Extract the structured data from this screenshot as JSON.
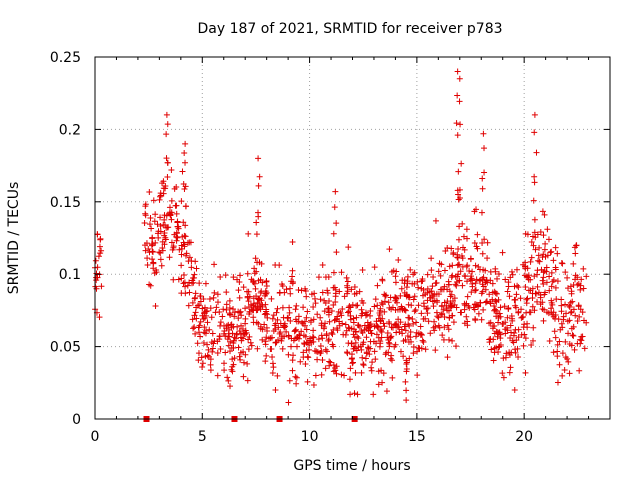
{
  "chart_data": {
    "type": "scatter",
    "title": "Day 187 of 2021, SRMTID for receiver p783",
    "xlabel": "GPS time / hours",
    "ylabel": "SRMTID / TECUs",
    "xlim": [
      0,
      24
    ],
    "ylim": [
      0,
      0.25
    ],
    "x_ticks": [
      0,
      5,
      10,
      15,
      20
    ],
    "x_tick_labels": [
      "0",
      "5",
      "10",
      "15",
      "20"
    ],
    "y_ticks": [
      0,
      0.05,
      0.1,
      0.15,
      0.2,
      0.25
    ],
    "y_tick_labels": [
      "0",
      "0.05",
      "0.1",
      "0.15",
      "0.2",
      "0.25"
    ],
    "grid": true,
    "marker": "+",
    "color": "#e00000",
    "gap_markers_x": [
      2.4,
      6.5,
      8.6,
      12.1
    ],
    "series": [
      {
        "name": "SRMTID",
        "trend": [
          {
            "x": 0.0,
            "y": 0.095
          },
          {
            "x": 0.3,
            "y": 0.1
          },
          {
            "x": 2.3,
            "y": 0.13
          },
          {
            "x": 2.8,
            "y": 0.12
          },
          {
            "x": 3.2,
            "y": 0.14
          },
          {
            "x": 3.6,
            "y": 0.13
          },
          {
            "x": 4.2,
            "y": 0.12
          },
          {
            "x": 4.6,
            "y": 0.08
          },
          {
            "x": 5.0,
            "y": 0.065
          },
          {
            "x": 6.0,
            "y": 0.055
          },
          {
            "x": 7.0,
            "y": 0.065
          },
          {
            "x": 7.5,
            "y": 0.09
          },
          {
            "x": 8.0,
            "y": 0.065
          },
          {
            "x": 9.0,
            "y": 0.06
          },
          {
            "x": 10.0,
            "y": 0.06
          },
          {
            "x": 11.0,
            "y": 0.065
          },
          {
            "x": 12.0,
            "y": 0.06
          },
          {
            "x": 13.0,
            "y": 0.055
          },
          {
            "x": 14.0,
            "y": 0.07
          },
          {
            "x": 15.0,
            "y": 0.075
          },
          {
            "x": 16.0,
            "y": 0.085
          },
          {
            "x": 16.8,
            "y": 0.095
          },
          {
            "x": 17.5,
            "y": 0.1
          },
          {
            "x": 18.0,
            "y": 0.09
          },
          {
            "x": 19.0,
            "y": 0.065
          },
          {
            "x": 19.7,
            "y": 0.065
          },
          {
            "x": 20.5,
            "y": 0.1
          },
          {
            "x": 21.0,
            "y": 0.1
          },
          {
            "x": 21.5,
            "y": 0.07
          },
          {
            "x": 22.0,
            "y": 0.07
          },
          {
            "x": 22.9,
            "y": 0.08
          }
        ],
        "spread": 0.025,
        "coverage": [
          [
            0.0,
            0.3
          ],
          [
            2.3,
            22.9
          ]
        ],
        "point_count": 1500,
        "peaks": [
          {
            "x": 3.35,
            "y": 0.21
          },
          {
            "x": 4.2,
            "y": 0.19
          },
          {
            "x": 7.6,
            "y": 0.18
          },
          {
            "x": 11.2,
            "y": 0.157
          },
          {
            "x": 16.9,
            "y": 0.24
          },
          {
            "x": 17.0,
            "y": 0.235
          },
          {
            "x": 18.1,
            "y": 0.197
          },
          {
            "x": 20.5,
            "y": 0.21
          },
          {
            "x": 14.5,
            "y": 0.013
          }
        ]
      }
    ]
  }
}
